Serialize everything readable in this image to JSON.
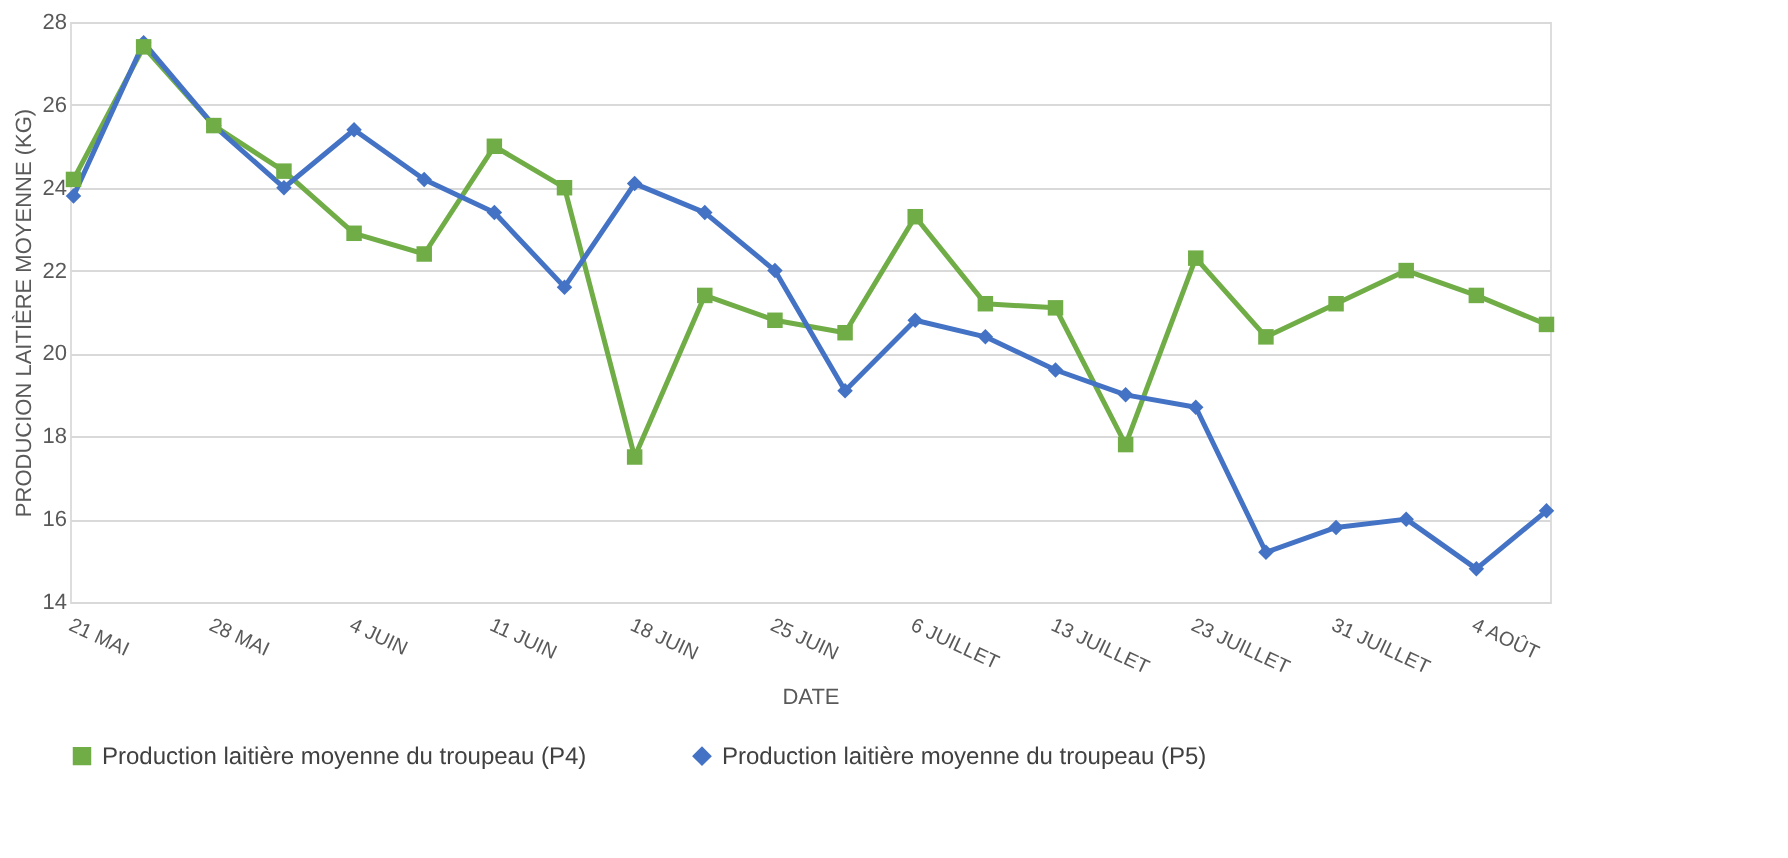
{
  "chart_data": {
    "type": "line",
    "xlabel": "DATE",
    "ylabel": "PRODUCION LAITIÈRE MOYENNE (KG)",
    "categories": [
      "21 MAI",
      null,
      "28 MAI",
      null,
      "4 JUIN",
      null,
      "11 JUIN",
      null,
      "18 JUIN",
      null,
      "25 JUIN",
      null,
      "6 JUILLET",
      null,
      "13 JUILLET",
      null,
      "23 JUILLET",
      null,
      "31 JUILLET",
      null,
      "4 AOÛT",
      null
    ],
    "series": [
      {
        "name": "Production laitière moyenne du troupeau (P4)",
        "color": "#70ad47",
        "marker": "square",
        "values": [
          24.2,
          27.4,
          25.5,
          24.4,
          22.9,
          22.4,
          25.0,
          24.0,
          17.5,
          21.4,
          20.8,
          20.5,
          23.3,
          21.2,
          21.1,
          17.8,
          22.3,
          20.4,
          21.2,
          22.0,
          21.4,
          20.7
        ]
      },
      {
        "name": "Production laitière moyenne du troupeau (P5)",
        "color": "#4472c4",
        "marker": "diamond",
        "values": [
          23.8,
          27.5,
          25.5,
          24.0,
          25.4,
          24.2,
          23.4,
          21.6,
          24.1,
          23.4,
          22.0,
          19.1,
          20.8,
          20.4,
          19.6,
          19.0,
          18.7,
          15.2,
          15.8,
          16.0,
          14.8,
          16.2
        ]
      }
    ],
    "ylim": [
      14,
      28
    ],
    "yticks": [
      14,
      16,
      18,
      20,
      22,
      24,
      26,
      28
    ],
    "grid": "y",
    "legend": "bottom",
    "line_style": "solid"
  }
}
